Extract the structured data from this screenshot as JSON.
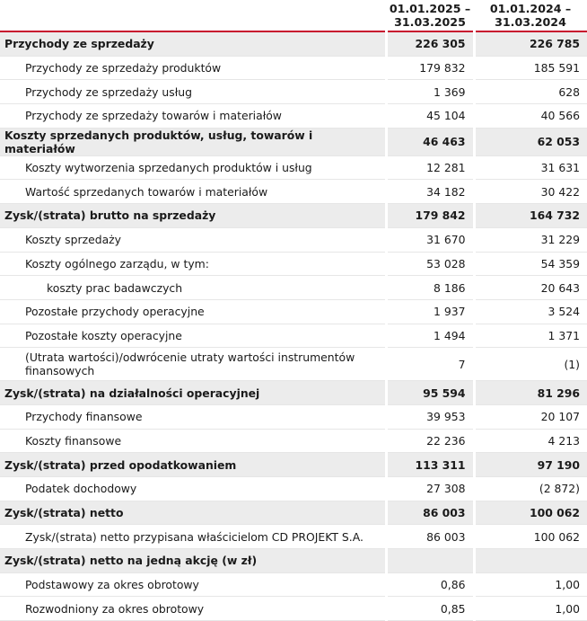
{
  "table": {
    "columns": [
      "01.01.2025 –\n31.03.2025",
      "01.01.2024 –\n31.03.2024"
    ],
    "rows": [
      [
        "Przychody ze sprzedaży",
        "226 305",
        "226 785"
      ],
      [
        "Przychody ze sprzedaży produktów",
        "179 832",
        "185 591"
      ],
      [
        "Przychody ze sprzedaży usług",
        "1 369",
        "628"
      ],
      [
        "Przychody ze sprzedaży towarów i materiałów",
        "45 104",
        "40 566"
      ],
      [
        "Koszty sprzedanych produktów, usług, towarów i materiałów",
        "46 463",
        "62 053"
      ],
      [
        "Koszty wytworzenia sprzedanych produktów i usług",
        "12 281",
        "31 631"
      ],
      [
        "Wartość sprzedanych towarów i materiałów",
        "34 182",
        "30 422"
      ],
      [
        "Zysk/(strata) brutto na sprzedaży",
        "179 842",
        "164 732"
      ],
      [
        "Koszty sprzedaży",
        "31 670",
        "31 229"
      ],
      [
        "Koszty ogólnego zarządu, w tym:",
        "53 028",
        "54 359"
      ],
      [
        "koszty prac badawczych",
        "8 186",
        "20 643"
      ],
      [
        "Pozostałe przychody operacyjne",
        "1 937",
        "3 524"
      ],
      [
        "Pozostałe koszty operacyjne",
        "1 494",
        "1 371"
      ],
      [
        "(Utrata wartości)/odwrócenie utraty wartości instrumentów finansowych",
        "7",
        "(1)"
      ],
      [
        "Zysk/(strata) na działalności operacyjnej",
        "95 594",
        "81 296"
      ],
      [
        "Przychody finansowe",
        "39 953",
        "20 107"
      ],
      [
        "Koszty finansowe",
        "22 236",
        "4 213"
      ],
      [
        "Zysk/(strata) przed opodatkowaniem",
        "113 311",
        "97 190"
      ],
      [
        "Podatek dochodowy",
        "27 308",
        "(2 872)"
      ],
      [
        "Zysk/(strata) netto",
        "86 003",
        "100 062"
      ],
      [
        "Zysk/(strata) netto przypisana właścicielom CD PROJEKT S.A.",
        "86 003",
        "100 062"
      ],
      [
        "Zysk/(strata) netto na jedną akcję (w zł)"
      ],
      [
        "Podstawowy za okres obrotowy",
        "0,86",
        "1,00"
      ],
      [
        "Rozwodniony za okres obrotowy",
        "0,85",
        "1,00"
      ]
    ]
  }
}
